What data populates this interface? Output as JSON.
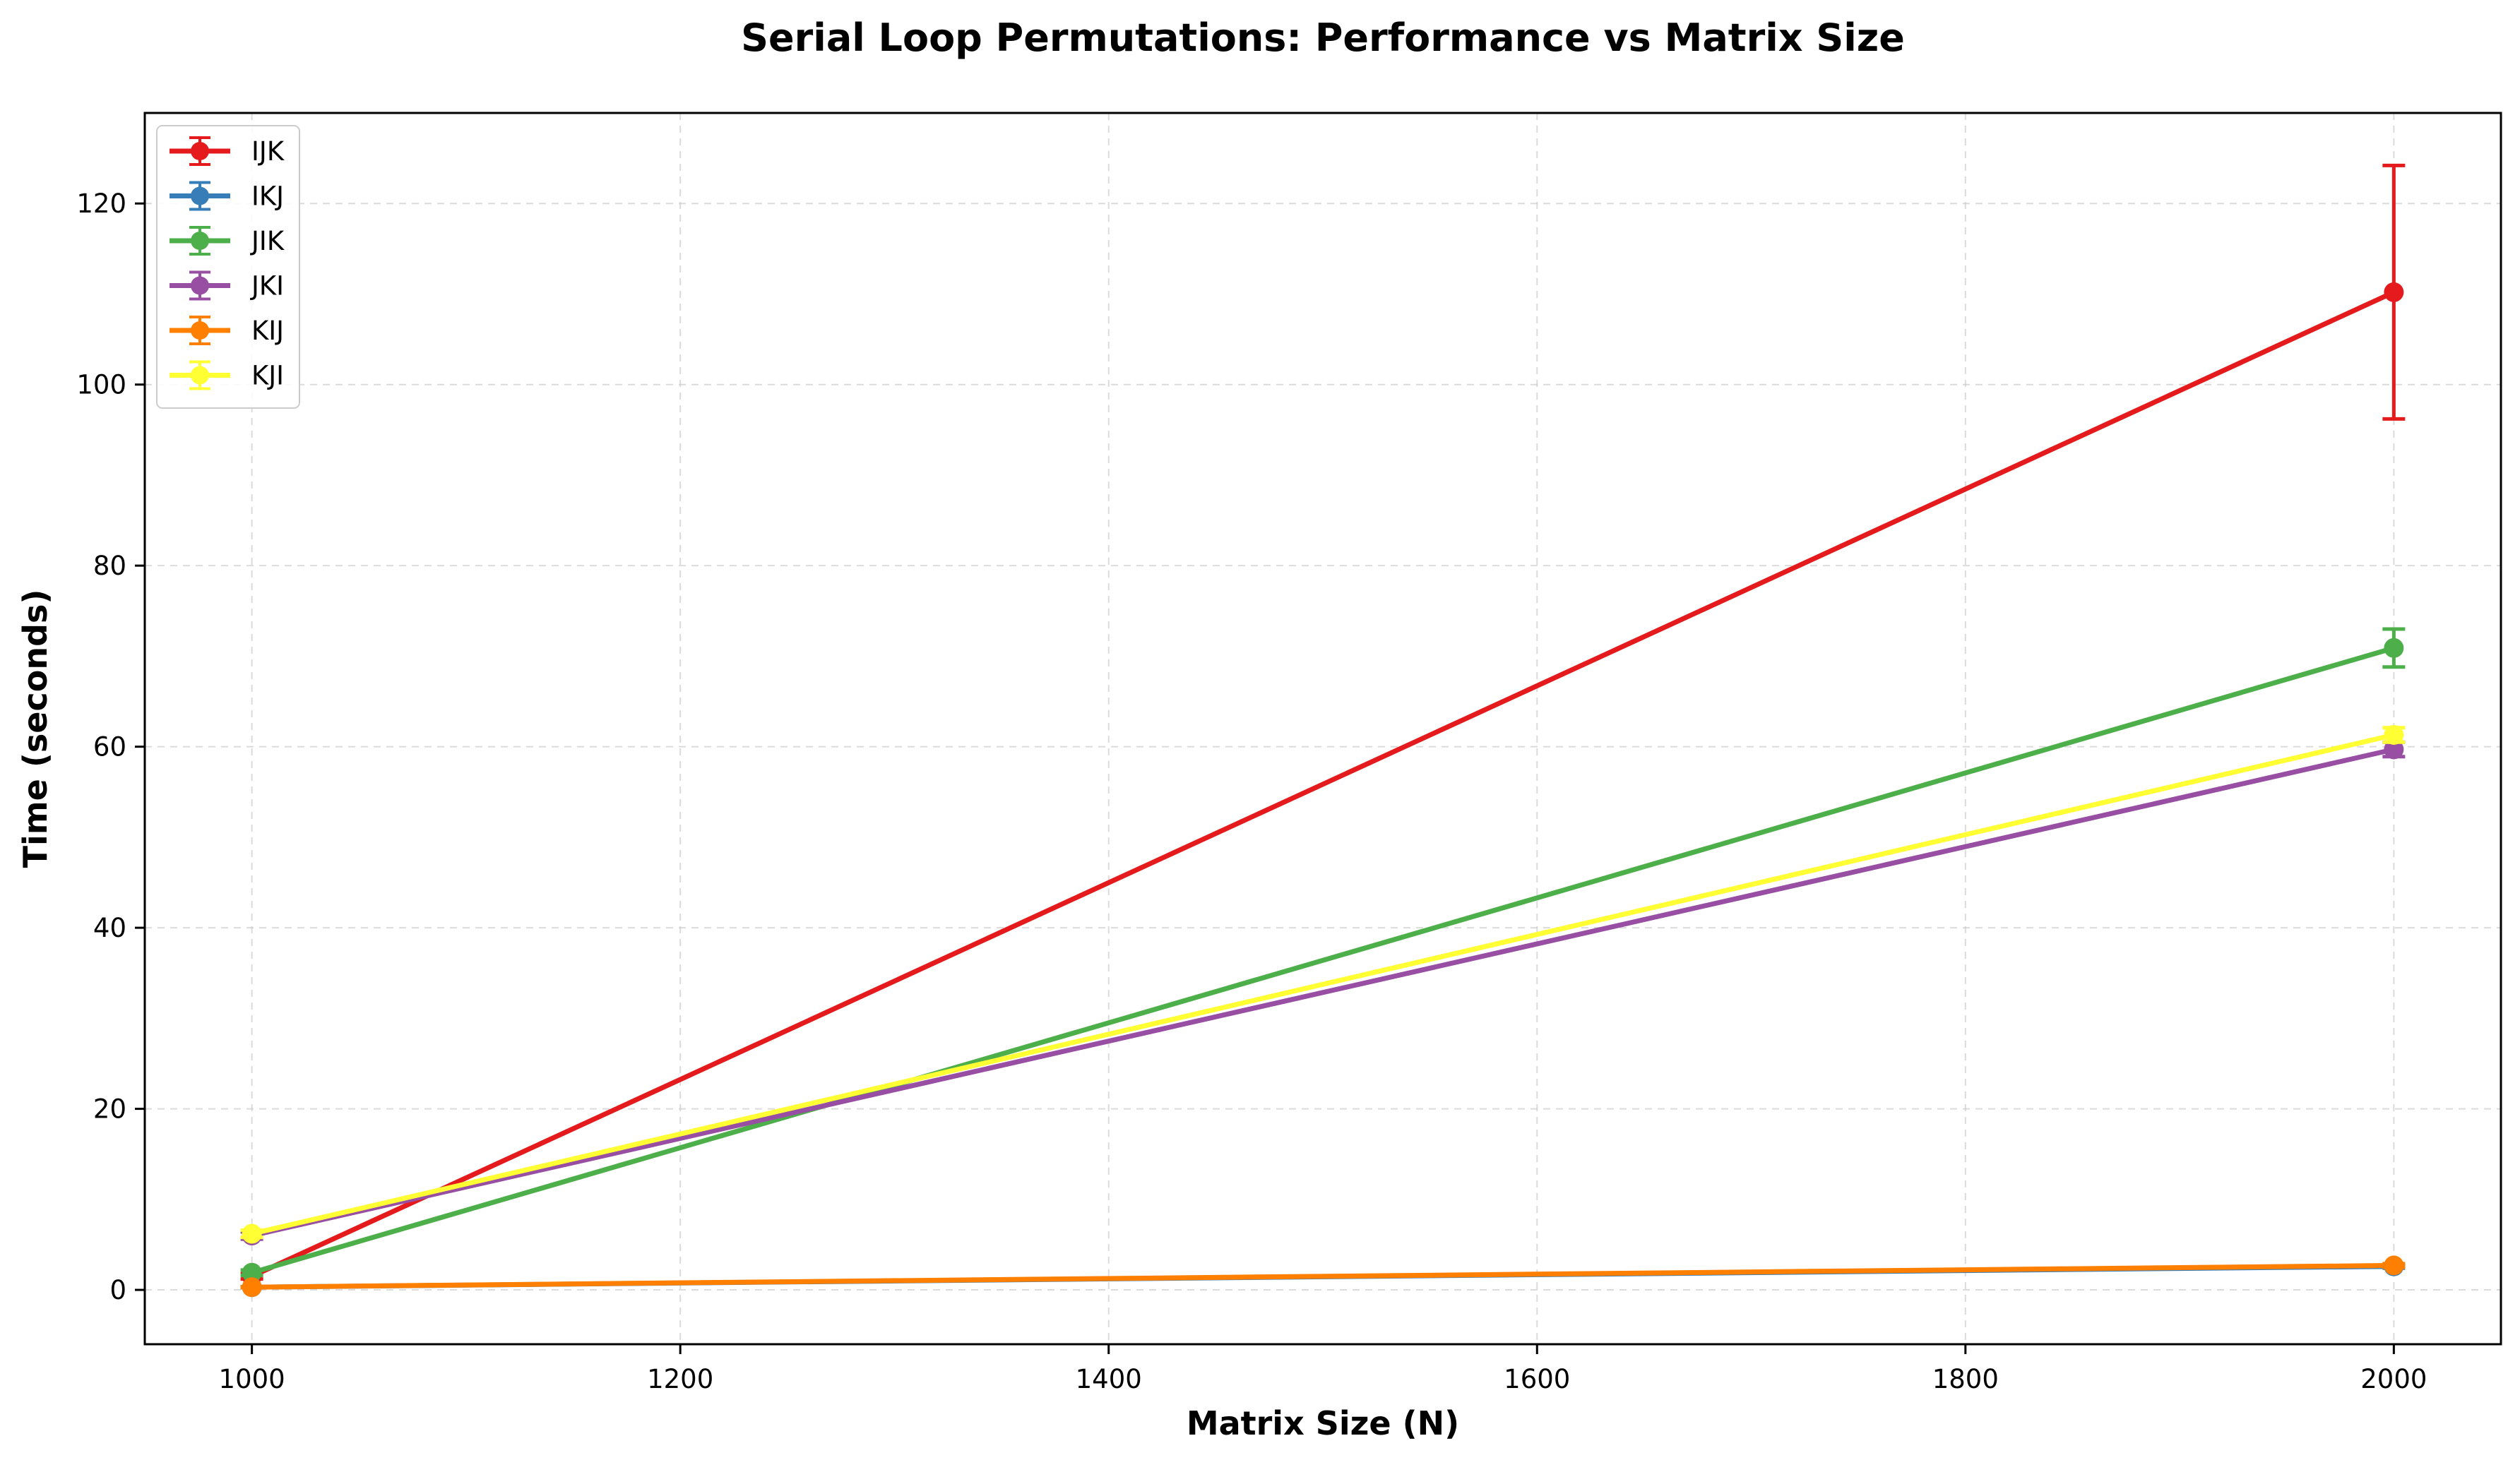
{
  "chart_data": {
    "type": "line",
    "title": "Serial Loop Permutations: Performance vs Matrix Size",
    "xlabel": "Matrix Size (N)",
    "ylabel": "Time (seconds)",
    "xlim": [
      950,
      2050
    ],
    "ylim": [
      -6,
      130
    ],
    "x": [
      1000,
      2000
    ],
    "xticks": [
      1000,
      1200,
      1400,
      1600,
      1800,
      2000
    ],
    "yticks": [
      0,
      20,
      40,
      60,
      80,
      100,
      120
    ],
    "grid": true,
    "legend_position": "top-left",
    "series": [
      {
        "name": "IJK",
        "color": "#e41a1c",
        "values": [
          1.5,
          110.2
        ],
        "errors": [
          0.3,
          14.0
        ]
      },
      {
        "name": "IKJ",
        "color": "#377eb8",
        "values": [
          0.3,
          2.6
        ],
        "errors": [
          0.05,
          0.2
        ]
      },
      {
        "name": "JIK",
        "color": "#4daf4a",
        "values": [
          1.9,
          70.9
        ],
        "errors": [
          0.3,
          2.1
        ]
      },
      {
        "name": "JKI",
        "color": "#984ea3",
        "values": [
          6.0,
          59.7
        ],
        "errors": [
          0.4,
          0.8
        ]
      },
      {
        "name": "KIJ",
        "color": "#ff7f00",
        "values": [
          0.3,
          2.7
        ],
        "errors": [
          0.05,
          0.2
        ]
      },
      {
        "name": "KJI",
        "color": "#ffff33",
        "values": [
          6.2,
          61.3
        ],
        "errors": [
          0.4,
          0.8
        ]
      }
    ]
  }
}
